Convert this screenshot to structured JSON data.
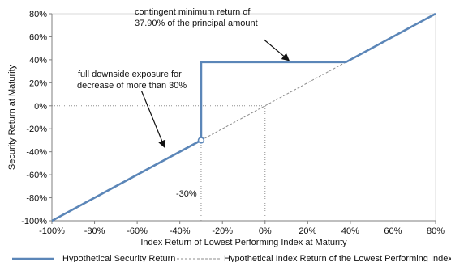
{
  "chart_data": {
    "type": "line",
    "xlabel": "Index Return of Lowest Performing Index at Maturity",
    "ylabel": "Security Return at Maturity",
    "xlim": [
      -100,
      80
    ],
    "ylim": [
      -100,
      80
    ],
    "x_ticks": [
      -100,
      -80,
      -60,
      -40,
      -20,
      0,
      20,
      40,
      60,
      80
    ],
    "y_ticks": [
      -100,
      -80,
      -60,
      -40,
      -20,
      0,
      20,
      40,
      60,
      80
    ],
    "x_tick_labels": [
      "-100%",
      "-80%",
      "-60%",
      "-40%",
      "-20%",
      "0%",
      "20%",
      "40%",
      "60%",
      "80%"
    ],
    "y_tick_labels": [
      "-100%",
      "-80%",
      "-60%",
      "-40%",
      "-20%",
      "0%",
      "20%",
      "40%",
      "60%",
      "80%"
    ],
    "grid": false,
    "legend_position": "bottom",
    "series": [
      {
        "name": "Hypothetical Security Return",
        "style": "solid",
        "color": "#5B86B8",
        "points": [
          {
            "x": -100,
            "y": -100
          },
          {
            "x": -30,
            "y": -30
          },
          {
            "x": -30,
            "y": 37.9
          },
          {
            "x": 37.9,
            "y": 37.9
          },
          {
            "x": 80,
            "y": 80
          }
        ]
      },
      {
        "name": "Hypothetical Index Return of the Lowest Performing Index",
        "style": "dashed",
        "color": "#8C8C8C",
        "points": [
          {
            "x": -30,
            "y": -30
          },
          {
            "x": 37.9,
            "y": 37.9
          }
        ]
      }
    ],
    "reference_lines": [
      {
        "orientation": "horizontal",
        "value": 0,
        "from": -100,
        "to": 0
      },
      {
        "orientation": "vertical",
        "value": 0,
        "from": -100,
        "to": 0
      },
      {
        "orientation": "vertical",
        "value": -30,
        "from": -100,
        "to": -30
      }
    ],
    "marker": {
      "x": -30,
      "y": -30,
      "style": "open-circle"
    },
    "annotations": [
      {
        "id": "contingent",
        "lines": [
          "contingent minimum return of",
          "37.90% of the principal amount"
        ]
      },
      {
        "id": "downside",
        "lines": [
          "full downside exposure for",
          "decrease of more than 30%"
        ]
      },
      {
        "id": "barrier",
        "lines": [
          "-30%"
        ]
      }
    ]
  }
}
